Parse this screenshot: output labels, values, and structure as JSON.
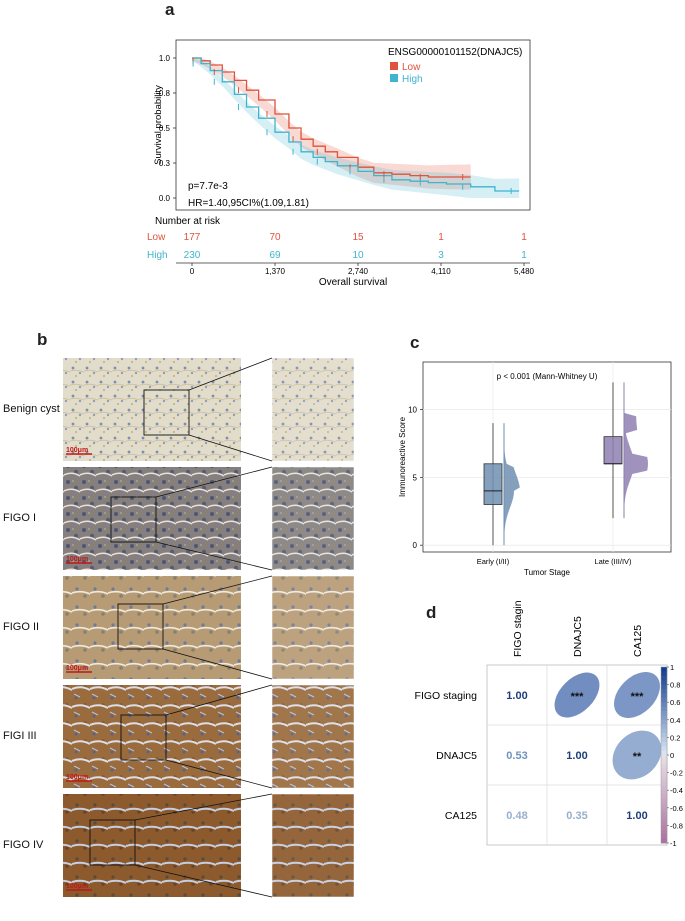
{
  "figure": {
    "panels": {
      "a": "a",
      "b": "b",
      "c": "c",
      "d": "d"
    }
  },
  "km": {
    "gene_label": "ENSG00000101152(DNAJC5)",
    "legend": [
      {
        "name": "Low",
        "color": "#e0523b"
      },
      {
        "name": "High",
        "color": "#3fb4cf"
      }
    ],
    "ylabel": "Survival probability",
    "xlabel": "Overall survival",
    "yticks": [
      "1.0",
      "0.8",
      "0.5",
      "0.3",
      "0.0"
    ],
    "xticks": [
      "0",
      "1,370",
      "2,740",
      "4,110",
      "5,480"
    ],
    "pvalue": "p=7.7e-3",
    "hr": "HR=1.40,95CI%(1.09,1.81)",
    "risk_title": "Number at risk",
    "risk": [
      {
        "group": "Low",
        "color": "#e0523b",
        "counts": [
          "177",
          "70",
          "15",
          "1",
          "1"
        ]
      },
      {
        "group": "High",
        "color": "#3fb4cf",
        "counts": [
          "230",
          "69",
          "10",
          "3",
          "1"
        ]
      }
    ]
  },
  "chart_data": [
    {
      "type": "line",
      "panel": "a",
      "xlabel": "Overall survival",
      "ylabel": "Survival probability",
      "xlim": [
        0,
        5480
      ],
      "ylim": [
        0,
        1
      ],
      "series": [
        {
          "name": "Low",
          "color": "#e0523b",
          "x": [
            0,
            150,
            300,
            500,
            700,
            900,
            1100,
            1370,
            1600,
            1800,
            2000,
            2200,
            2400,
            2740,
            3000,
            3300,
            3600,
            3900,
            4200,
            4600
          ],
          "y": [
            1.0,
            0.98,
            0.95,
            0.9,
            0.84,
            0.77,
            0.7,
            0.6,
            0.5,
            0.42,
            0.37,
            0.33,
            0.29,
            0.22,
            0.18,
            0.17,
            0.16,
            0.15,
            0.15,
            0.15
          ]
        },
        {
          "name": "High",
          "color": "#3fb4cf",
          "x": [
            0,
            150,
            300,
            500,
            700,
            900,
            1100,
            1370,
            1600,
            1800,
            2000,
            2200,
            2400,
            2740,
            3000,
            3300,
            3600,
            3900,
            4200,
            4600,
            5000,
            5400
          ],
          "y": [
            1.0,
            0.96,
            0.91,
            0.83,
            0.74,
            0.65,
            0.57,
            0.47,
            0.4,
            0.33,
            0.29,
            0.26,
            0.23,
            0.19,
            0.16,
            0.13,
            0.12,
            0.11,
            0.1,
            0.08,
            0.05,
            0.05
          ]
        }
      ]
    },
    {
      "type": "box",
      "panel": "c",
      "title": "p < 0.001 (Mann-Whitney U)",
      "xlabel": "Tumor Stage",
      "ylabel": "Immunoreactive Score",
      "categories": [
        "Early (I/II)",
        "Late (III/IV)"
      ],
      "yticks": [
        "0",
        "5",
        "10"
      ],
      "ylim": [
        -0.5,
        13.5
      ],
      "boxes": [
        {
          "category": "Early (I/II)",
          "color": "#6e8fb0",
          "min": 0,
          "q1": 3,
          "median": 4,
          "q3": 6,
          "max": 9
        },
        {
          "category": "Late (III/IV)",
          "color": "#8e7fb2",
          "min": 2,
          "q1": 6,
          "median": 6,
          "q3": 8,
          "max": 12
        }
      ]
    },
    {
      "type": "heatmap",
      "panel": "d",
      "labels": [
        "FIGO staging",
        "DNAJC5",
        "CA125"
      ],
      "matrix": [
        [
          1.0,
          0.53,
          0.48
        ],
        [
          0.53,
          1.0,
          0.35
        ],
        [
          0.48,
          0.35,
          1.0
        ]
      ],
      "lower_text": [
        [
          "1.00",
          "",
          ""
        ],
        [
          "0.53",
          "1.00",
          ""
        ],
        [
          "0.48",
          "0.35",
          "1.00"
        ]
      ],
      "upper_stars": [
        [
          "",
          "***",
          "***"
        ],
        [
          "",
          "",
          "**"
        ],
        [
          "",
          "",
          ""
        ]
      ],
      "colorbar_ticks": [
        "1",
        "0.8",
        "0.6",
        "0.4",
        "0.2",
        "0",
        "-0.2",
        "-0.4",
        "-0.6",
        "-0.8",
        "-1"
      ]
    }
  ],
  "ihc": {
    "scale_text": "100μm",
    "rows": [
      {
        "label": "Benign cyst"
      },
      {
        "label": "FIGO I"
      },
      {
        "label": "FIGO II"
      },
      {
        "label": "FIGI III"
      },
      {
        "label": "FIGO IV"
      }
    ]
  }
}
